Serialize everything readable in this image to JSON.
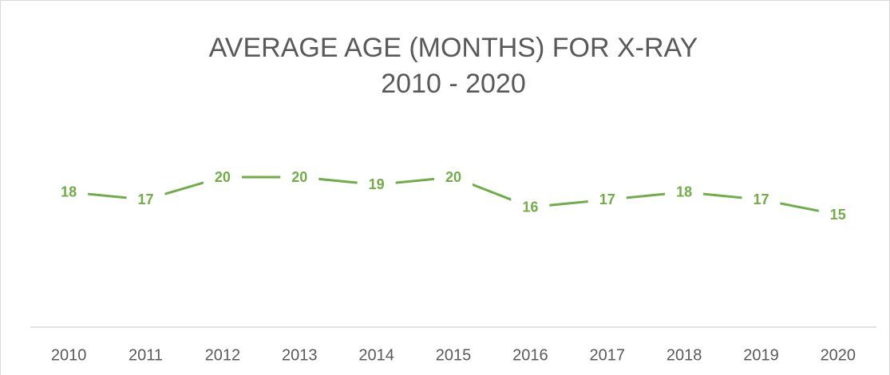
{
  "chart_data": {
    "type": "line",
    "title": "AVERAGE AGE (MONTHS) FOR X-RAY",
    "subtitle": "2010 - 2020",
    "categories": [
      "2010",
      "2011",
      "2012",
      "2013",
      "2014",
      "2015",
      "2016",
      "2017",
      "2018",
      "2019",
      "2020"
    ],
    "series": [
      {
        "name": "Average age (months)",
        "color": "#70ad47",
        "values": [
          18,
          17,
          20,
          20,
          19,
          20,
          16,
          17,
          18,
          17,
          15
        ]
      }
    ],
    "ylim": [
      0,
      25
    ],
    "grid": false
  }
}
